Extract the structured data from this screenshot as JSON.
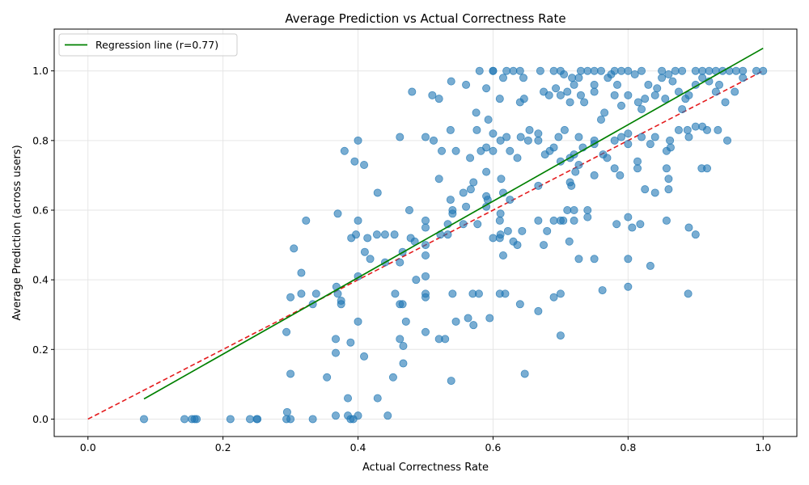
{
  "chart_data": {
    "type": "scatter",
    "title": "Average Prediction vs Actual Correctness Rate",
    "xlabel": "Actual Correctness Rate",
    "ylabel": "Average Prediction (across users)",
    "xlim": [
      -0.05,
      1.05
    ],
    "ylim": [
      -0.05,
      1.12
    ],
    "xticks": [
      0.0,
      0.2,
      0.4,
      0.6,
      0.8,
      1.0
    ],
    "xtick_labels": [
      "0.0",
      "0.2",
      "0.4",
      "0.6",
      "0.8",
      "1.0"
    ],
    "yticks": [
      0.0,
      0.2,
      0.4,
      0.6,
      0.8,
      1.0
    ],
    "ytick_labels": [
      "0.0",
      "0.2",
      "0.4",
      "0.6",
      "0.8",
      "1.0"
    ],
    "grid": true,
    "legend_position": "top-left",
    "legend": [
      {
        "label": "Regression line (r=0.77)",
        "color": "#008000",
        "style": "solid"
      }
    ],
    "colors": {
      "points": "#1f77b4",
      "regression": "#008000",
      "identity": "#e41a1c"
    },
    "regression_line": {
      "label": "Regression line (r=0.77)",
      "x": [
        0.083,
        1.0
      ],
      "y": [
        0.058,
        1.065
      ]
    },
    "identity_line": {
      "x": [
        0.0,
        1.0
      ],
      "y": [
        0.0,
        1.0
      ]
    },
    "points": [
      [
        0.083,
        0.0
      ],
      [
        0.143,
        0.0
      ],
      [
        0.154,
        0.0
      ],
      [
        0.158,
        0.0
      ],
      [
        0.161,
        0.0
      ],
      [
        0.211,
        0.0
      ],
      [
        0.24,
        0.0
      ],
      [
        0.25,
        0.0
      ],
      [
        0.251,
        0.0
      ],
      [
        0.294,
        0.0
      ],
      [
        0.3,
        0.0
      ],
      [
        0.333,
        0.0
      ],
      [
        0.389,
        0.0
      ],
      [
        0.393,
        0.0
      ],
      [
        0.295,
        0.02
      ],
      [
        0.367,
        0.01
      ],
      [
        0.385,
        0.01
      ],
      [
        0.4,
        0.01
      ],
      [
        0.444,
        0.01
      ],
      [
        0.385,
        0.06
      ],
      [
        0.429,
        0.06
      ],
      [
        0.3,
        0.13
      ],
      [
        0.354,
        0.12
      ],
      [
        0.452,
        0.12
      ],
      [
        0.538,
        0.11
      ],
      [
        0.647,
        0.13
      ],
      [
        0.367,
        0.19
      ],
      [
        0.409,
        0.18
      ],
      [
        0.467,
        0.16
      ],
      [
        0.294,
        0.25
      ],
      [
        0.367,
        0.23
      ],
      [
        0.389,
        0.22
      ],
      [
        0.462,
        0.23
      ],
      [
        0.467,
        0.21
      ],
      [
        0.5,
        0.25
      ],
      [
        0.52,
        0.23
      ],
      [
        0.529,
        0.23
      ],
      [
        0.4,
        0.28
      ],
      [
        0.471,
        0.28
      ],
      [
        0.545,
        0.28
      ],
      [
        0.563,
        0.29
      ],
      [
        0.571,
        0.27
      ],
      [
        0.595,
        0.29
      ],
      [
        0.667,
        0.31
      ],
      [
        0.7,
        0.24
      ],
      [
        0.3,
        0.35
      ],
      [
        0.316,
        0.36
      ],
      [
        0.333,
        0.33
      ],
      [
        0.338,
        0.36
      ],
      [
        0.37,
        0.36
      ],
      [
        0.375,
        0.33
      ],
      [
        0.375,
        0.34
      ],
      [
        0.368,
        0.38
      ],
      [
        0.316,
        0.42
      ],
      [
        0.4,
        0.41
      ],
      [
        0.44,
        0.45
      ],
      [
        0.455,
        0.36
      ],
      [
        0.462,
        0.33
      ],
      [
        0.466,
        0.33
      ],
      [
        0.462,
        0.45
      ],
      [
        0.486,
        0.4
      ],
      [
        0.5,
        0.35
      ],
      [
        0.5,
        0.36
      ],
      [
        0.5,
        0.41
      ],
      [
        0.54,
        0.36
      ],
      [
        0.57,
        0.36
      ],
      [
        0.579,
        0.36
      ],
      [
        0.61,
        0.36
      ],
      [
        0.618,
        0.36
      ],
      [
        0.64,
        0.33
      ],
      [
        0.69,
        0.35
      ],
      [
        0.7,
        0.36
      ],
      [
        0.762,
        0.37
      ],
      [
        0.8,
        0.38
      ],
      [
        0.889,
        0.36
      ],
      [
        0.833,
        0.44
      ],
      [
        0.8,
        0.46
      ],
      [
        0.727,
        0.46
      ],
      [
        0.75,
        0.46
      ],
      [
        0.305,
        0.49
      ],
      [
        0.39,
        0.52
      ],
      [
        0.41,
        0.48
      ],
      [
        0.414,
        0.52
      ],
      [
        0.418,
        0.46
      ],
      [
        0.428,
        0.53
      ],
      [
        0.44,
        0.53
      ],
      [
        0.454,
        0.53
      ],
      [
        0.466,
        0.48
      ],
      [
        0.478,
        0.52
      ],
      [
        0.484,
        0.51
      ],
      [
        0.5,
        0.47
      ],
      [
        0.5,
        0.5
      ],
      [
        0.5,
        0.55
      ],
      [
        0.522,
        0.53
      ],
      [
        0.533,
        0.53
      ],
      [
        0.556,
        0.56
      ],
      [
        0.6,
        0.52
      ],
      [
        0.611,
        0.53
      ],
      [
        0.61,
        0.52
      ],
      [
        0.615,
        0.47
      ],
      [
        0.622,
        0.54
      ],
      [
        0.63,
        0.51
      ],
      [
        0.636,
        0.5
      ],
      [
        0.643,
        0.54
      ],
      [
        0.667,
        0.57
      ],
      [
        0.675,
        0.5
      ],
      [
        0.68,
        0.54
      ],
      [
        0.704,
        0.57
      ],
      [
        0.713,
        0.51
      ],
      [
        0.72,
        0.57
      ],
      [
        0.74,
        0.58
      ],
      [
        0.74,
        0.6
      ],
      [
        0.783,
        0.56
      ],
      [
        0.8,
        0.58
      ],
      [
        0.806,
        0.55
      ],
      [
        0.818,
        0.56
      ],
      [
        0.857,
        0.57
      ],
      [
        0.89,
        0.55
      ],
      [
        0.9,
        0.53
      ],
      [
        0.323,
        0.57
      ],
      [
        0.37,
        0.59
      ],
      [
        0.397,
        0.53
      ],
      [
        0.4,
        0.57
      ],
      [
        0.429,
        0.65
      ],
      [
        0.476,
        0.6
      ],
      [
        0.5,
        0.57
      ],
      [
        0.52,
        0.69
      ],
      [
        0.533,
        0.56
      ],
      [
        0.537,
        0.63
      ],
      [
        0.54,
        0.59
      ],
      [
        0.54,
        0.6
      ],
      [
        0.556,
        0.65
      ],
      [
        0.56,
        0.61
      ],
      [
        0.567,
        0.66
      ],
      [
        0.571,
        0.68
      ],
      [
        0.577,
        0.56
      ],
      [
        0.59,
        0.61
      ],
      [
        0.592,
        0.63
      ],
      [
        0.59,
        0.64
      ],
      [
        0.59,
        0.71
      ],
      [
        0.61,
        0.57
      ],
      [
        0.611,
        0.59
      ],
      [
        0.612,
        0.69
      ],
      [
        0.615,
        0.65
      ],
      [
        0.625,
        0.63
      ],
      [
        0.667,
        0.67
      ],
      [
        0.69,
        0.57
      ],
      [
        0.7,
        0.57
      ],
      [
        0.71,
        0.6
      ],
      [
        0.714,
        0.68
      ],
      [
        0.716,
        0.67
      ],
      [
        0.72,
        0.6
      ],
      [
        0.722,
        0.71
      ],
      [
        0.727,
        0.73
      ],
      [
        0.75,
        0.7
      ],
      [
        0.78,
        0.72
      ],
      [
        0.788,
        0.7
      ],
      [
        0.814,
        0.72
      ],
      [
        0.814,
        0.74
      ],
      [
        0.825,
        0.66
      ],
      [
        0.84,
        0.65
      ],
      [
        0.857,
        0.72
      ],
      [
        0.86,
        0.66
      ],
      [
        0.86,
        0.69
      ],
      [
        0.909,
        0.72
      ],
      [
        0.917,
        0.72
      ],
      [
        0.38,
        0.77
      ],
      [
        0.395,
        0.74
      ],
      [
        0.4,
        0.8
      ],
      [
        0.409,
        0.73
      ],
      [
        0.462,
        0.81
      ],
      [
        0.5,
        0.81
      ],
      [
        0.512,
        0.8
      ],
      [
        0.524,
        0.77
      ],
      [
        0.537,
        0.83
      ],
      [
        0.545,
        0.77
      ],
      [
        0.566,
        0.75
      ],
      [
        0.576,
        0.83
      ],
      [
        0.582,
        0.77
      ],
      [
        0.59,
        0.78
      ],
      [
        0.593,
        0.86
      ],
      [
        0.6,
        0.82
      ],
      [
        0.6,
        0.77
      ],
      [
        0.611,
        0.8
      ],
      [
        0.62,
        0.81
      ],
      [
        0.625,
        0.77
      ],
      [
        0.636,
        0.75
      ],
      [
        0.641,
        0.81
      ],
      [
        0.652,
        0.8
      ],
      [
        0.654,
        0.83
      ],
      [
        0.667,
        0.8
      ],
      [
        0.667,
        0.82
      ],
      [
        0.677,
        0.76
      ],
      [
        0.684,
        0.77
      ],
      [
        0.69,
        0.78
      ],
      [
        0.697,
        0.81
      ],
      [
        0.7,
        0.74
      ],
      [
        0.706,
        0.83
      ],
      [
        0.714,
        0.75
      ],
      [
        0.72,
        0.76
      ],
      [
        0.727,
        0.81
      ],
      [
        0.733,
        0.78
      ],
      [
        0.75,
        0.79
      ],
      [
        0.75,
        0.8
      ],
      [
        0.763,
        0.76
      ],
      [
        0.769,
        0.75
      ],
      [
        0.78,
        0.8
      ],
      [
        0.79,
        0.81
      ],
      [
        0.8,
        0.79
      ],
      [
        0.8,
        0.82
      ],
      [
        0.82,
        0.81
      ],
      [
        0.833,
        0.79
      ],
      [
        0.84,
        0.81
      ],
      [
        0.857,
        0.77
      ],
      [
        0.862,
        0.8
      ],
      [
        0.863,
        0.78
      ],
      [
        0.875,
        0.83
      ],
      [
        0.888,
        0.83
      ],
      [
        0.89,
        0.81
      ],
      [
        0.9,
        0.84
      ],
      [
        0.91,
        0.84
      ],
      [
        0.917,
        0.83
      ],
      [
        0.933,
        0.83
      ],
      [
        0.947,
        0.8
      ],
      [
        0.48,
        0.94
      ],
      [
        0.51,
        0.93
      ],
      [
        0.52,
        0.92
      ],
      [
        0.538,
        0.97
      ],
      [
        0.56,
        0.96
      ],
      [
        0.575,
        0.88
      ],
      [
        0.58,
        1.0
      ],
      [
        0.59,
        0.95
      ],
      [
        0.6,
        1.0
      ],
      [
        0.61,
        0.92
      ],
      [
        0.615,
        0.98
      ],
      [
        0.62,
        1.0
      ],
      [
        0.63,
        1.0
      ],
      [
        0.64,
        0.91
      ],
      [
        0.645,
        0.98
      ],
      [
        0.646,
        0.92
      ],
      [
        0.67,
        1.0
      ],
      [
        0.675,
        0.94
      ],
      [
        0.683,
        0.93
      ],
      [
        0.69,
        1.0
      ],
      [
        0.693,
        0.95
      ],
      [
        0.7,
        0.93
      ],
      [
        0.705,
        0.99
      ],
      [
        0.71,
        0.94
      ],
      [
        0.714,
        0.91
      ],
      [
        0.717,
        0.98
      ],
      [
        0.72,
        0.96
      ],
      [
        0.727,
        0.98
      ],
      [
        0.73,
        0.93
      ],
      [
        0.735,
        0.91
      ],
      [
        0.74,
        1.0
      ],
      [
        0.75,
        0.96
      ],
      [
        0.75,
        0.94
      ],
      [
        0.76,
        0.86
      ],
      [
        0.765,
        0.88
      ],
      [
        0.77,
        0.98
      ],
      [
        0.775,
        0.99
      ],
      [
        0.78,
        0.93
      ],
      [
        0.784,
        0.96
      ],
      [
        0.79,
        0.9
      ],
      [
        0.8,
        1.0
      ],
      [
        0.8,
        0.93
      ],
      [
        0.81,
        0.99
      ],
      [
        0.815,
        0.91
      ],
      [
        0.82,
        0.89
      ],
      [
        0.825,
        0.92
      ],
      [
        0.83,
        0.96
      ],
      [
        0.84,
        0.93
      ],
      [
        0.843,
        0.95
      ],
      [
        0.85,
        0.98
      ],
      [
        0.855,
        0.92
      ],
      [
        0.86,
        0.99
      ],
      [
        0.866,
        0.97
      ],
      [
        0.875,
        0.94
      ],
      [
        0.88,
        0.89
      ],
      [
        0.885,
        0.92
      ],
      [
        0.89,
        0.93
      ],
      [
        0.9,
        0.96
      ],
      [
        0.91,
        0.98
      ],
      [
        0.92,
        0.97
      ],
      [
        0.93,
        0.94
      ],
      [
        0.935,
        0.96
      ],
      [
        0.944,
        0.91
      ],
      [
        0.958,
        0.94
      ],
      [
        0.97,
        0.98
      ],
      [
        0.6,
        1.0
      ],
      [
        0.64,
        1.0
      ],
      [
        0.7,
        1.0
      ],
      [
        0.73,
        1.0
      ],
      [
        0.75,
        1.0
      ],
      [
        0.76,
        1.0
      ],
      [
        0.78,
        1.0
      ],
      [
        0.79,
        1.0
      ],
      [
        0.82,
        1.0
      ],
      [
        0.85,
        1.0
      ],
      [
        0.87,
        1.0
      ],
      [
        0.88,
        1.0
      ],
      [
        0.9,
        1.0
      ],
      [
        0.91,
        1.0
      ],
      [
        0.92,
        1.0
      ],
      [
        0.93,
        1.0
      ],
      [
        0.94,
        1.0
      ],
      [
        0.95,
        1.0
      ],
      [
        0.96,
        1.0
      ],
      [
        0.97,
        1.0
      ],
      [
        0.99,
        1.0
      ],
      [
        1.0,
        1.0
      ]
    ]
  }
}
